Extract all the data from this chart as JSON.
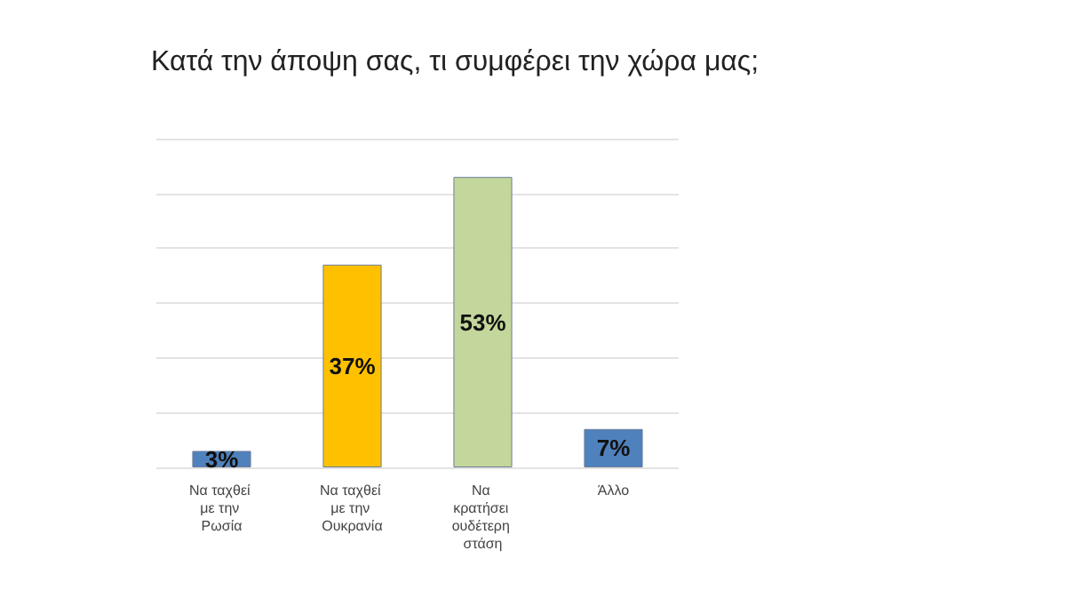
{
  "chart_data": {
    "type": "bar",
    "title": "Κατά την άποψη σας, τι συμφέρει την χώρα μας;",
    "categories": [
      "Να ταχθεί με την Ρωσία",
      "Να ταχθεί με την Ουκρανία",
      "Να κρατήσει ουδέτερη στάση",
      "Άλλο"
    ],
    "values": [
      3,
      37,
      53,
      7
    ],
    "value_labels": [
      "3%",
      "37%",
      "53%",
      "7%"
    ],
    "colors": [
      "#4f81bd",
      "#ffc000",
      "#c3d69b",
      "#4f81bd"
    ],
    "ylim": [
      0,
      60
    ],
    "yticks": [
      {
        "value": 0,
        "label": null
      },
      {
        "value": 10,
        "label": null
      },
      {
        "value": 20,
        "label": null
      },
      {
        "value": 30,
        "label": null
      },
      {
        "value": 40,
        "label": null
      },
      {
        "value": 50,
        "label": null
      },
      {
        "value": 60,
        "label": null
      }
    ],
    "tick_labels": "x",
    "grid": "y"
  }
}
